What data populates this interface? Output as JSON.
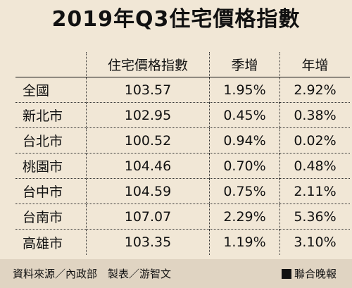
{
  "title": "2019年Q3住宅價格指數",
  "columns": [
    "",
    "住宅價格指數",
    "季增",
    "年增"
  ],
  "rows": [
    {
      "area": "全國",
      "index": "103.57",
      "qoq": "1.95%",
      "yoy": "2.92%"
    },
    {
      "area": "新北市",
      "index": "102.95",
      "qoq": "0.45%",
      "yoy": "0.38%"
    },
    {
      "area": "台北市",
      "index": "100.52",
      "qoq": "0.94%",
      "yoy": "0.02%"
    },
    {
      "area": "桃園市",
      "index": "104.46",
      "qoq": "0.70%",
      "yoy": "0.48%"
    },
    {
      "area": "台中市",
      "index": "104.59",
      "qoq": "0.75%",
      "yoy": "2.11%"
    },
    {
      "area": "台南市",
      "index": "107.07",
      "qoq": "2.29%",
      "yoy": "5.36%"
    },
    {
      "area": "高雄市",
      "index": "103.35",
      "qoq": "1.19%",
      "yoy": "3.10%"
    }
  ],
  "footer": {
    "source": "資料來源／內政部　製表／游智文",
    "brand": "聯合晚報"
  }
}
